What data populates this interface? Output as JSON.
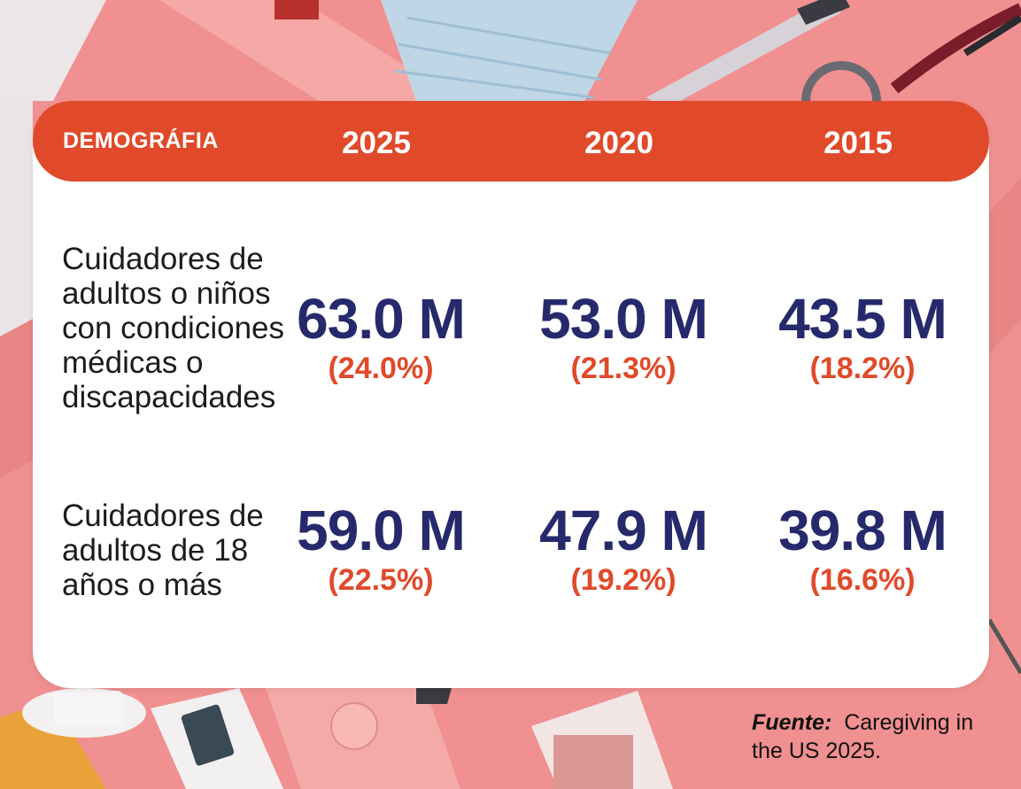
{
  "colors": {
    "background": "#f09090",
    "header": "#e04a2a",
    "value": "#262a6c",
    "percent": "#e04a2a",
    "card": "#ffffff"
  },
  "table": {
    "header": {
      "label": "DEMOGRÁFIA",
      "years": [
        "2025",
        "2020",
        "2015"
      ]
    },
    "rows": [
      {
        "label": "Cuidadores de adultos o niños con condiciones médicas o discapacidades",
        "cells": [
          {
            "value": "63.0 M",
            "percent": "(24.0%)"
          },
          {
            "value": "53.0 M",
            "percent": "(21.3%)"
          },
          {
            "value": "43.5 M",
            "percent": "(18.2%)"
          }
        ]
      },
      {
        "label": "Cuidadores de adultos de 18 años o más",
        "cells": [
          {
            "value": "59.0 M",
            "percent": "(22.5%)"
          },
          {
            "value": "47.9 M",
            "percent": "(19.2%)"
          },
          {
            "value": "39.8 M",
            "percent": "(16.6%)"
          }
        ]
      }
    ]
  },
  "source": {
    "label": "Fuente:",
    "text": "Caregiving in the US 2025."
  },
  "chart_data": {
    "type": "table",
    "columns": [
      "DEMOGRÁFIA",
      "2025",
      "2020",
      "2015"
    ],
    "rows": [
      {
        "label": "Cuidadores de adultos o niños con condiciones médicas o discapacidades",
        "values_millions": [
          63.0,
          53.0,
          43.5
        ],
        "percent": [
          24.0,
          21.3,
          18.2
        ]
      },
      {
        "label": "Cuidadores de adultos de 18 años o más",
        "values_millions": [
          59.0,
          47.9,
          39.8
        ],
        "percent": [
          22.5,
          19.2,
          16.6
        ]
      }
    ]
  }
}
